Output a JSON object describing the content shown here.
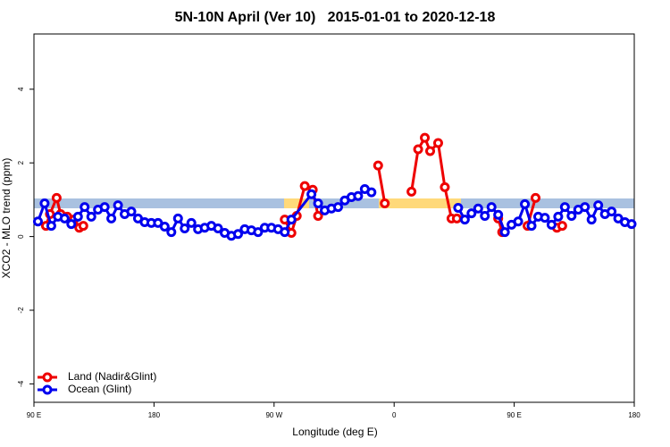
{
  "chart_data": {
    "type": "line",
    "title": "5N-10N April (Ver 10)   2015-01-01 to 2020-12-18",
    "xlabel": "Longitude (deg E)",
    "ylabel": "XCO2 - MLO trend (ppm)",
    "xlim": [
      90,
      540
    ],
    "ylim": [
      -4.5,
      5.5
    ],
    "xticks": [
      {
        "value": 90,
        "label": "90 E"
      },
      180,
      {
        "value": 270,
        "label": "90 W"
      },
      {
        "value": 360,
        "label": "0"
      },
      {
        "value": 450,
        "label": "90 E"
      },
      {
        "value": 540,
        "label": "180"
      }
    ],
    "yticks": [
      -4,
      -2,
      0,
      2,
      4
    ],
    "legend": "bottom-left",
    "series": [
      {
        "name": "Land (Nadir&Glint)",
        "color": "#ee0000",
        "x": [
          99,
          102,
          107,
          110,
          115,
          120,
          124,
          127,
          null,
          278,
          283,
          287,
          293,
          299,
          303,
          null,
          348,
          353,
          null,
          373,
          378,
          383,
          387,
          393,
          398,
          403,
          407,
          null,
          438,
          441,
          null,
          460,
          466,
          null,
          482,
          486
        ],
        "values": [
          0.29,
          0.61,
          1.05,
          0.61,
          0.54,
          0.46,
          0.24,
          0.29,
          null,
          0.46,
          0.1,
          0.56,
          1.37,
          1.27,
          0.56,
          null,
          1.93,
          0.9,
          null,
          1.22,
          2.37,
          2.68,
          2.32,
          2.54,
          1.34,
          0.49,
          0.49,
          null,
          0.49,
          0.12,
          null,
          0.29,
          1.05,
          null,
          0.24,
          0.29
        ]
      },
      {
        "name": "Ocean (Glint)",
        "color": "#0000ee",
        "x": [
          93,
          98,
          103,
          108,
          113,
          118,
          123,
          128,
          133,
          138,
          143,
          148,
          153,
          158,
          163,
          168,
          173,
          178,
          183,
          188,
          193,
          198,
          203,
          208,
          213,
          218,
          223,
          228,
          233,
          238,
          243,
          248,
          253,
          258,
          263,
          268,
          273,
          278,
          283,
          298,
          303,
          308,
          313,
          318,
          323,
          328,
          333,
          338,
          343,
          null,
          408,
          413,
          418,
          423,
          428,
          433,
          438,
          443,
          448,
          453,
          458,
          463,
          468,
          473,
          478,
          483,
          488,
          493,
          498,
          503,
          508,
          513,
          518,
          523,
          528,
          533,
          538
        ],
        "values": [
          0.41,
          0.9,
          0.29,
          0.54,
          0.49,
          0.34,
          0.54,
          0.8,
          0.54,
          0.73,
          0.8,
          0.49,
          0.85,
          0.61,
          0.68,
          0.49,
          0.39,
          0.37,
          0.37,
          0.27,
          0.12,
          0.49,
          0.22,
          0.37,
          0.2,
          0.24,
          0.29,
          0.22,
          0.1,
          0.02,
          0.07,
          0.2,
          0.17,
          0.12,
          0.24,
          0.24,
          0.2,
          0.12,
          0.46,
          1.15,
          0.9,
          0.71,
          0.76,
          0.8,
          0.98,
          1.07,
          1.1,
          1.29,
          1.2,
          null,
          0.78,
          0.46,
          0.63,
          0.76,
          0.56,
          0.8,
          0.59,
          0.12,
          0.32,
          0.41,
          0.88,
          0.29,
          0.54,
          0.51,
          0.32,
          0.54,
          0.8,
          0.56,
          0.73,
          0.8,
          0.46,
          0.85,
          0.61,
          0.68,
          0.49,
          0.39,
          0.34
        ]
      }
    ]
  }
}
